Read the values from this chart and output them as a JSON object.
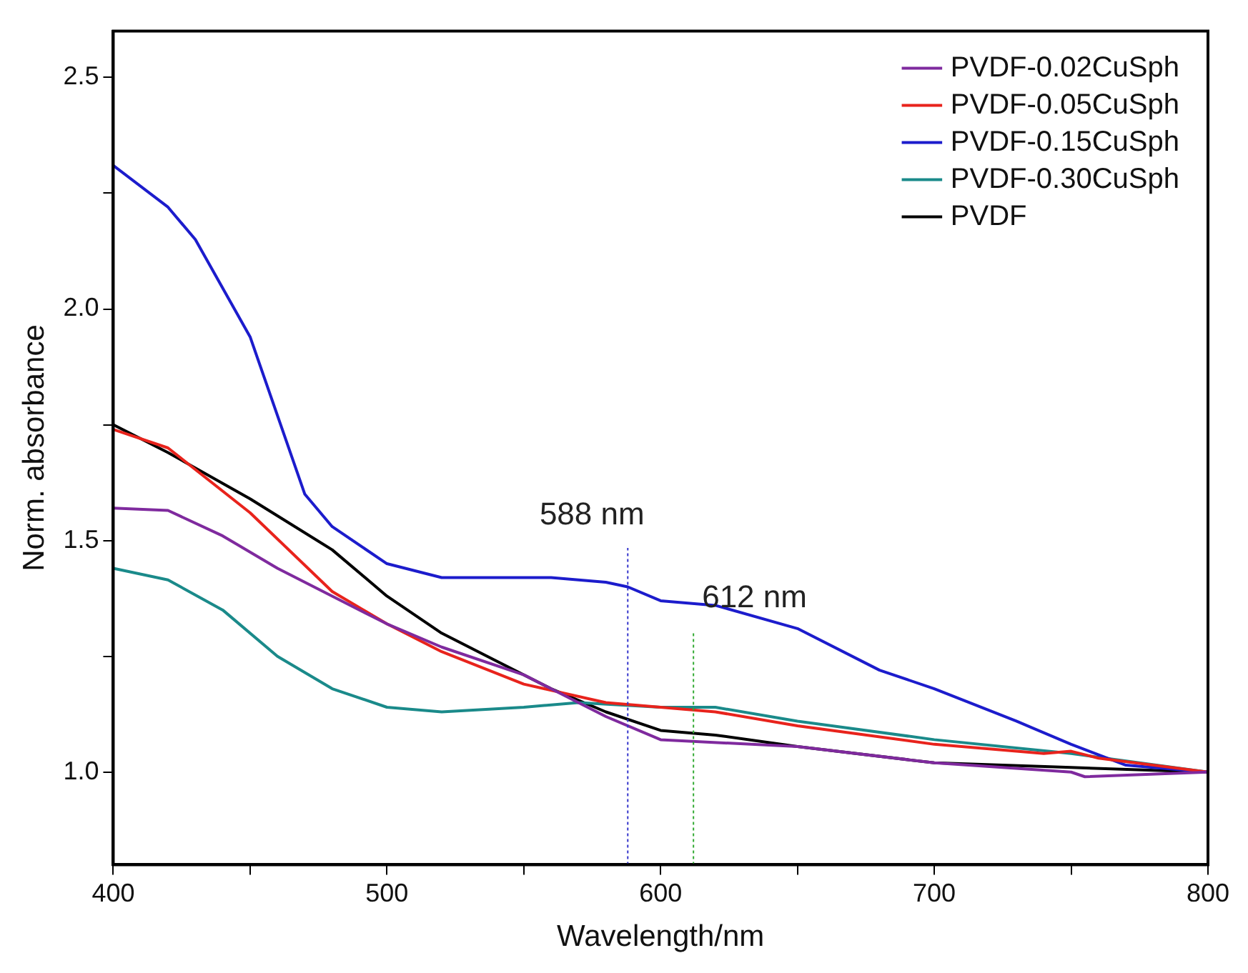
{
  "chart_data": {
    "type": "line",
    "xlabel": "Wavelength/nm",
    "ylabel": "Norm. absorbance",
    "xlim": [
      400,
      800
    ],
    "ylim": [
      0.8,
      2.6
    ],
    "xticks": [
      400,
      {
        "value": 450,
        "label": null
      },
      500,
      {
        "value": 550,
        "label": null
      },
      600,
      {
        "value": 650,
        "label": null
      },
      700,
      {
        "value": 750,
        "label": null
      },
      800
    ],
    "yticks": [
      {
        "value": 1,
        "label": "1.0"
      },
      {
        "value": 1.25,
        "label": null
      },
      1.5,
      {
        "value": 1.75,
        "label": null
      },
      {
        "value": 2,
        "label": "2.0"
      },
      {
        "value": 2.25,
        "label": null
      },
      2.5
    ],
    "grid": false,
    "legend": "top right",
    "marker": "none",
    "line_style": "solid",
    "ref_lines": [
      {
        "axis": "x",
        "value": 588,
        "label": "588 nm",
        "color": "#3333cc",
        "line_style": "dotted"
      },
      {
        "axis": "x",
        "value": 612,
        "label": "612 nm",
        "color": "#33aa33",
        "line_style": "dotted"
      }
    ],
    "series": [
      {
        "name": "PVDF-0.02CuSph",
        "color": "#7f2a9e",
        "x": [
          400,
          420,
          440,
          460,
          480,
          500,
          520,
          550,
          580,
          600,
          650,
          700,
          750,
          755,
          800
        ],
        "values": [
          1.57,
          1.565,
          1.51,
          1.44,
          1.38,
          1.32,
          1.27,
          1.21,
          1.12,
          1.07,
          1.055,
          1.02,
          1.0,
          0.99,
          1.0
        ]
      },
      {
        "name": "PVDF-0.05CuSph",
        "color": "#e8231c",
        "x": [
          400,
          420,
          450,
          480,
          500,
          520,
          550,
          580,
          600,
          620,
          650,
          700,
          740,
          750,
          760,
          800
        ],
        "values": [
          1.74,
          1.7,
          1.56,
          1.39,
          1.32,
          1.26,
          1.19,
          1.15,
          1.14,
          1.13,
          1.1,
          1.06,
          1.04,
          1.045,
          1.03,
          1.0
        ]
      },
      {
        "name": "PVDF-0.15CuSph",
        "color": "#1c1ccc",
        "x": [
          400,
          420,
          430,
          450,
          470,
          480,
          500,
          520,
          560,
          580,
          588,
          600,
          620,
          650,
          680,
          700,
          730,
          750,
          770,
          800
        ],
        "values": [
          2.31,
          2.22,
          2.15,
          1.94,
          1.6,
          1.53,
          1.45,
          1.42,
          1.42,
          1.41,
          1.4,
          1.37,
          1.36,
          1.31,
          1.22,
          1.18,
          1.11,
          1.06,
          1.015,
          1.0
        ]
      },
      {
        "name": "PVDF-0.30CuSph",
        "color": "#1a8a8a",
        "x": [
          400,
          420,
          440,
          460,
          480,
          500,
          520,
          550,
          570,
          600,
          620,
          650,
          700,
          750,
          800
        ],
        "values": [
          1.44,
          1.415,
          1.35,
          1.25,
          1.18,
          1.14,
          1.13,
          1.14,
          1.15,
          1.14,
          1.14,
          1.11,
          1.07,
          1.04,
          1.0
        ]
      },
      {
        "name": "PVDF",
        "color": "#000000",
        "x": [
          400,
          420,
          450,
          480,
          500,
          520,
          540,
          560,
          580,
          600,
          620,
          650,
          700,
          750,
          800
        ],
        "values": [
          1.75,
          1.69,
          1.59,
          1.48,
          1.38,
          1.3,
          1.24,
          1.18,
          1.13,
          1.09,
          1.08,
          1.055,
          1.02,
          1.01,
          1.0
        ]
      }
    ]
  }
}
